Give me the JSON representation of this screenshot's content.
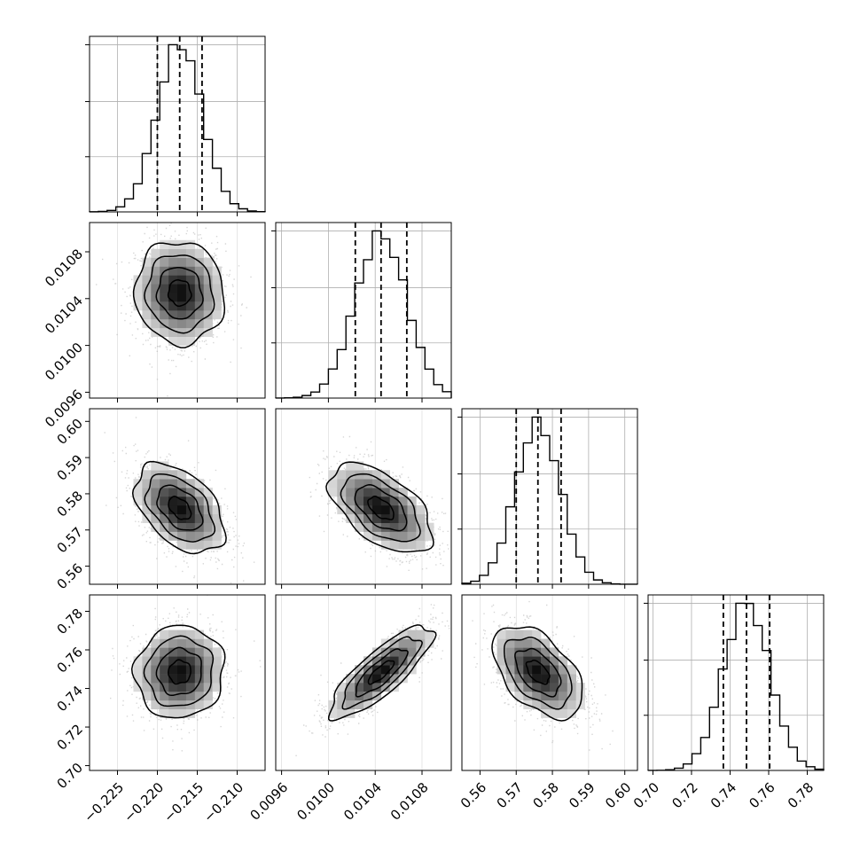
{
  "chart_data": {
    "type": "corner",
    "grid": true,
    "parameters": [
      {
        "index": 0,
        "range": [
          -0.2285,
          -0.2065
        ],
        "ticks": [
          -0.225,
          -0.22,
          -0.215,
          -0.21
        ],
        "tick_labels": [
          "−0.225",
          "−0.220",
          "−0.215",
          "−0.210"
        ],
        "quantiles": [
          -0.22,
          -0.2172,
          -0.2144
        ],
        "mean": -0.2172,
        "sd": 0.0028
      },
      {
        "index": 1,
        "range": [
          0.00955,
          0.01105
        ],
        "ticks": [
          0.0096,
          0.01,
          0.0104,
          0.0108
        ],
        "tick_labels": [
          "0.0096",
          "0.0100",
          "0.0104",
          "0.0108"
        ],
        "quantiles": [
          0.01023,
          0.01045,
          0.01067
        ],
        "mean": 0.01045,
        "sd": 0.00022
      },
      {
        "index": 2,
        "range": [
          0.555,
          0.6035
        ],
        "ticks": [
          0.56,
          0.57,
          0.58,
          0.59,
          0.6
        ],
        "tick_labels": [
          "0.56",
          "0.57",
          "0.58",
          "0.59",
          "0.60"
        ],
        "quantiles": [
          0.57,
          0.576,
          0.5824
        ],
        "mean": 0.576,
        "sd": 0.0062
      },
      {
        "index": 3,
        "range": [
          0.6975,
          0.7885
        ],
        "ticks": [
          0.7,
          0.72,
          0.74,
          0.76,
          0.78
        ],
        "tick_labels": [
          "0.70",
          "0.72",
          "0.74",
          "0.76",
          "0.78"
        ],
        "quantiles": [
          0.7365,
          0.7485,
          0.7605
        ],
        "mean": 0.7485,
        "sd": 0.012
      }
    ],
    "correlations": [
      [
        1,
        -0.05,
        -0.45,
        0.05
      ],
      [
        -0.05,
        1,
        -0.55,
        0.82
      ],
      [
        -0.45,
        -0.55,
        1,
        -0.5
      ],
      [
        0.05,
        0.82,
        -0.5,
        1
      ]
    ],
    "histogram_bins": 20,
    "contour_levels": [
      0.118,
      0.393,
      0.675,
      0.864
    ],
    "colors": {
      "line": "#000000",
      "grid": "#b0b0b0",
      "points": "#000000"
    }
  }
}
